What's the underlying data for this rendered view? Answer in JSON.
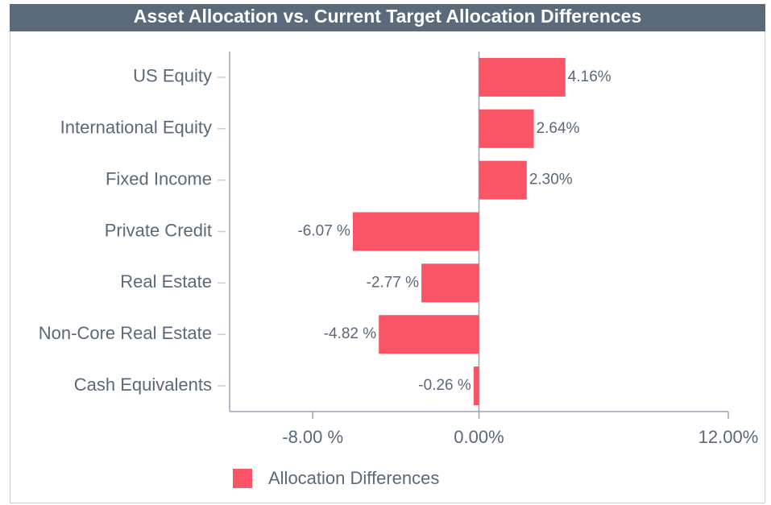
{
  "chart_data": {
    "type": "hbar",
    "title": "Asset Allocation vs. Current Target Allocation Differences",
    "categories": [
      "US Equity",
      "International Equity",
      "Fixed Income",
      "Private Credit",
      "Real Estate",
      "Non-Core Real Estate",
      "Cash Equivalents"
    ],
    "series": [
      {
        "name": "Allocation Differences",
        "color": "#f95566",
        "values": [
          4.16,
          2.64,
          2.3,
          -6.07,
          -2.77,
          -4.82,
          -0.26
        ],
        "value_labels": [
          "4.16%",
          "2.64%",
          "2.30%",
          "-6.07 %",
          "-2.77 %",
          "-4.82 %",
          "-0.26 %"
        ]
      }
    ],
    "xlim": [
      -12,
      12
    ],
    "xticks": [
      {
        "value": -8,
        "label": "-8.00 %"
      },
      {
        "value": 0,
        "label": "0.00%"
      },
      {
        "value": 12,
        "label": "12.00%"
      }
    ]
  }
}
